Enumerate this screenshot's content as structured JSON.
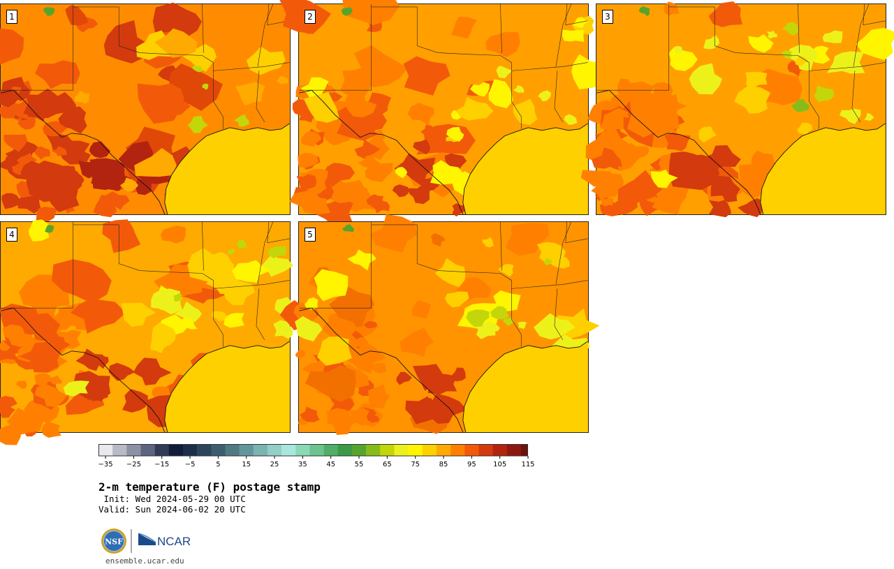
{
  "panels": [
    {
      "label": "1",
      "theme": "hot"
    },
    {
      "label": "2",
      "theme": "warm"
    },
    {
      "label": "3",
      "theme": "mild"
    },
    {
      "label": "4",
      "theme": "warmcool"
    },
    {
      "label": "5",
      "theme": "mildcool"
    }
  ],
  "colorbar": {
    "colors": [
      "#e8e8ee",
      "#b9b9c8",
      "#8e90a4",
      "#5e6380",
      "#323a5a",
      "#111c38",
      "#1c2e4b",
      "#2c455d",
      "#3d5e6e",
      "#4f7a82",
      "#63969a",
      "#7ab3b0",
      "#93cfc6",
      "#a8e8dc",
      "#8ad8b4",
      "#6cc38e",
      "#4fae68",
      "#3a9a47",
      "#55a52d",
      "#86bc1a",
      "#c3d60a",
      "#edf11a",
      "#fff500",
      "#ffd000",
      "#ffaa00",
      "#ff8000",
      "#f25a0a",
      "#d33a0d",
      "#b32410",
      "#8e1810",
      "#6a140c"
    ],
    "tick_values": [
      "−35",
      "−25",
      "−15",
      "−5",
      "5",
      "15",
      "25",
      "35",
      "45",
      "55",
      "65",
      "75",
      "85",
      "95",
      "105",
      "115"
    ]
  },
  "title": "2-m temperature (F) postage stamp",
  "init": " Init: Wed 2024-05-29 00 UTC",
  "valid": "Valid: Sun 2024-06-02 20 UTC",
  "logos": {
    "nsf": "NSF",
    "ncar": "NCAR"
  },
  "website": "ensemble.ucar.edu"
}
